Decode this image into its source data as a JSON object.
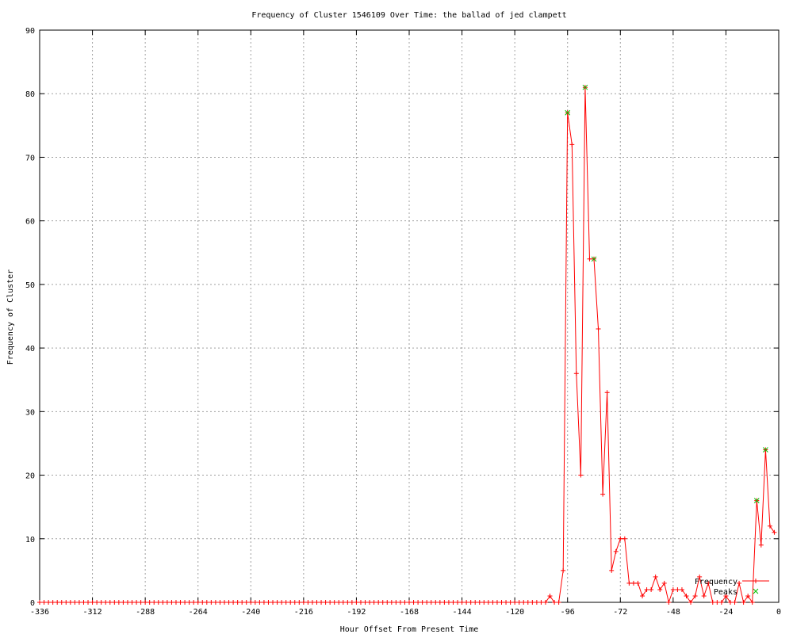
{
  "chart_data": {
    "type": "line",
    "title": "Frequency of Cluster 1546109 Over Time: the ballad of jed clampett",
    "xlabel": "Hour Offset From Present Time",
    "ylabel": "Frequency of Cluster",
    "xlim": [
      -336,
      0
    ],
    "ylim": [
      0,
      90
    ],
    "x_ticks": [
      -336,
      -312,
      -288,
      -264,
      -240,
      -216,
      -192,
      -168,
      -144,
      -120,
      -96,
      -72,
      -48,
      -24,
      0
    ],
    "y_ticks": [
      0,
      10,
      20,
      30,
      40,
      50,
      60,
      70,
      80,
      90
    ],
    "grid": true,
    "legend_position": "bottom-right",
    "series": [
      {
        "name": "Frequency",
        "color": "#ff0000",
        "marker": "plus",
        "x": [
          -336,
          -334,
          -332,
          -330,
          -328,
          -326,
          -324,
          -322,
          -320,
          -318,
          -316,
          -314,
          -312,
          -310,
          -308,
          -306,
          -304,
          -302,
          -300,
          -298,
          -296,
          -294,
          -292,
          -290,
          -288,
          -286,
          -284,
          -282,
          -280,
          -278,
          -276,
          -274,
          -272,
          -270,
          -268,
          -266,
          -264,
          -262,
          -260,
          -258,
          -256,
          -254,
          -252,
          -250,
          -248,
          -246,
          -244,
          -242,
          -240,
          -238,
          -236,
          -234,
          -232,
          -230,
          -228,
          -226,
          -224,
          -222,
          -220,
          -218,
          -216,
          -214,
          -212,
          -210,
          -208,
          -206,
          -204,
          -202,
          -200,
          -198,
          -196,
          -194,
          -192,
          -190,
          -188,
          -186,
          -184,
          -182,
          -180,
          -178,
          -176,
          -174,
          -172,
          -170,
          -168,
          -166,
          -164,
          -162,
          -160,
          -158,
          -156,
          -154,
          -152,
          -150,
          -148,
          -146,
          -144,
          -142,
          -140,
          -138,
          -136,
          -134,
          -132,
          -130,
          -128,
          -126,
          -124,
          -122,
          -120,
          -118,
          -116,
          -114,
          -112,
          -110,
          -108,
          -106,
          -104,
          -102,
          -100,
          -98,
          -96,
          -94,
          -92,
          -90,
          -88,
          -86,
          -84,
          -82,
          -80,
          -78,
          -76,
          -74,
          -72,
          -70,
          -68,
          -66,
          -64,
          -62,
          -60,
          -58,
          -56,
          -54,
          -52,
          -50,
          -48,
          -46,
          -44,
          -42,
          -40,
          -38,
          -36,
          -34,
          -32,
          -30,
          -28,
          -26,
          -24,
          -22,
          -20,
          -18,
          -16,
          -14,
          -12,
          -10,
          -8,
          -6,
          -4,
          -2
        ],
        "y": [
          0,
          0,
          0,
          0,
          0,
          0,
          0,
          0,
          0,
          0,
          0,
          0,
          0,
          0,
          0,
          0,
          0,
          0,
          0,
          0,
          0,
          0,
          0,
          0,
          0,
          0,
          0,
          0,
          0,
          0,
          0,
          0,
          0,
          0,
          0,
          0,
          0,
          0,
          0,
          0,
          0,
          0,
          0,
          0,
          0,
          0,
          0,
          0,
          0,
          0,
          0,
          0,
          0,
          0,
          0,
          0,
          0,
          0,
          0,
          0,
          0,
          0,
          0,
          0,
          0,
          0,
          0,
          0,
          0,
          0,
          0,
          0,
          0,
          0,
          0,
          0,
          0,
          0,
          0,
          0,
          0,
          0,
          0,
          0,
          0,
          0,
          0,
          0,
          0,
          0,
          0,
          0,
          0,
          0,
          0,
          0,
          0,
          0,
          0,
          0,
          0,
          0,
          0,
          0,
          0,
          0,
          0,
          0,
          0,
          0,
          0,
          0,
          0,
          0,
          0,
          0,
          1,
          0,
          0,
          5,
          77,
          72,
          36,
          20,
          81,
          54,
          54,
          43,
          17,
          33,
          5,
          8,
          10,
          10,
          3,
          3,
          3,
          1,
          2,
          2,
          4,
          2,
          3,
          0,
          2,
          2,
          2,
          1,
          0,
          1,
          4,
          1,
          3,
          0,
          0,
          0,
          1,
          0,
          0,
          3,
          0,
          1,
          0,
          16,
          9,
          24,
          12,
          11
        ]
      },
      {
        "name": "Peaks",
        "color": "#00c000",
        "marker": "x",
        "x": [
          -96,
          -88,
          -84,
          -10,
          -6
        ],
        "y": [
          77,
          81,
          54,
          16,
          24
        ]
      }
    ]
  }
}
